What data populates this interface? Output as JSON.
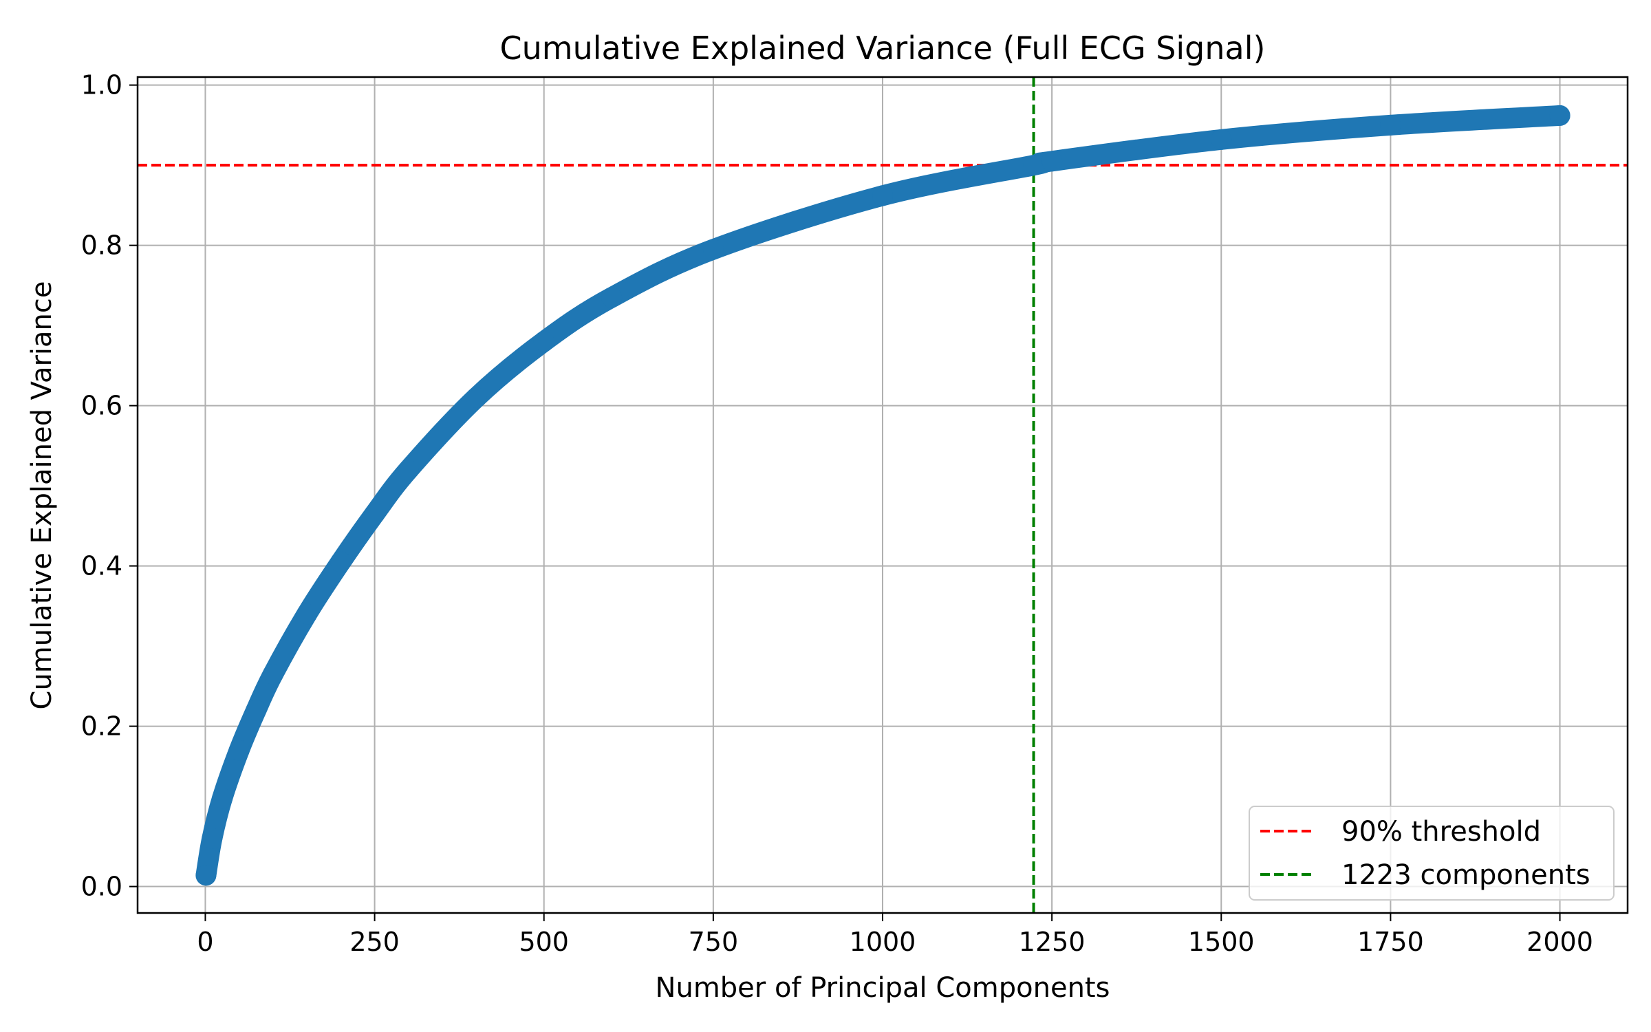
{
  "chart_data": {
    "type": "scatter",
    "title": "Cumulative Explained Variance (Full ECG Signal)",
    "xlabel": "Number of Principal Components",
    "ylabel": "Cumulative Explained Variance",
    "xlim": [
      -100,
      2100
    ],
    "ylim": [
      -0.033,
      1.01
    ],
    "xticks": [
      0,
      250,
      500,
      750,
      1000,
      1250,
      1500,
      1750,
      2000
    ],
    "xtick_labels": [
      "0",
      "250",
      "500",
      "750",
      "1000",
      "1250",
      "1500",
      "1750",
      "2000"
    ],
    "yticks": [
      0.0,
      0.2,
      0.4,
      0.6,
      0.8,
      1.0
    ],
    "ytick_labels": [
      "0.0",
      "0.2",
      "0.4",
      "0.6",
      "0.8",
      "1.0"
    ],
    "grid": true,
    "series": [
      {
        "color": "#1f77b4",
        "x": [
          1,
          10,
          25,
          50,
          75,
          100,
          150,
          200,
          250,
          300,
          400,
          500,
          600,
          750,
          1000,
          1223,
          1250,
          1500,
          1750,
          2000
        ],
        "y": [
          0.014,
          0.06,
          0.11,
          0.17,
          0.22,
          0.265,
          0.34,
          0.405,
          0.465,
          0.52,
          0.61,
          0.68,
          0.735,
          0.795,
          0.862,
          0.9,
          0.905,
          0.932,
          0.95,
          0.962
        ]
      }
    ],
    "reference_lines": [
      {
        "orientation": "horizontal",
        "value": 0.9,
        "color": "#ff0000",
        "style": "dashed",
        "label": "90% threshold"
      },
      {
        "orientation": "vertical",
        "value": 1223,
        "color": "#008000",
        "style": "dashed",
        "label": "1223 components"
      }
    ],
    "legend": {
      "position": "lower-right",
      "entries": [
        {
          "label": "90% threshold",
          "color": "#ff0000"
        },
        {
          "label": "1223 components",
          "color": "#008000"
        }
      ]
    }
  }
}
